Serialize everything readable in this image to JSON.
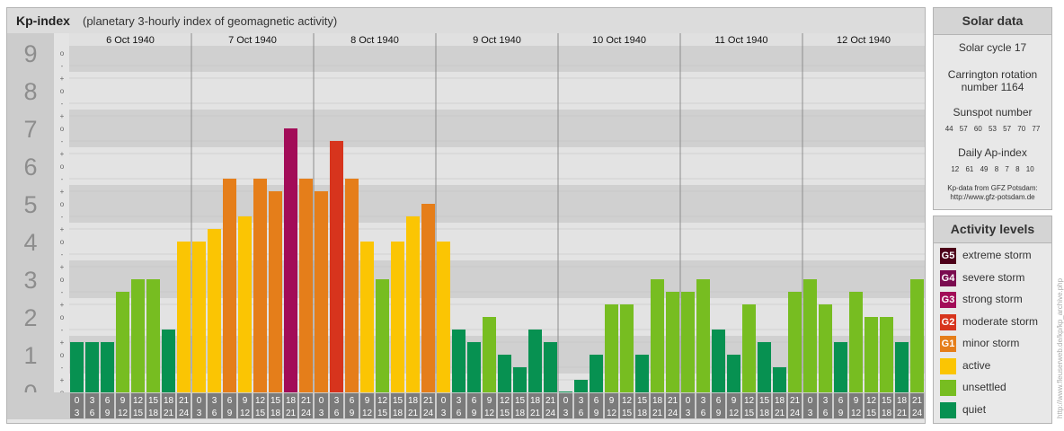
{
  "title": {
    "main": "Kp-index",
    "sub": "(planetary 3-hourly index of geomagnetic activity)"
  },
  "chart_data": {
    "type": "bar",
    "title": "Kp-index",
    "subtitle": "(planetary 3-hourly index of geomagnetic activity)",
    "y_ticks": [
      "0",
      "1",
      "2",
      "3",
      "4",
      "5",
      "6",
      "7",
      "8",
      "9"
    ],
    "y_minor_labels": [
      "o",
      "+",
      "-"
    ],
    "ylim": [
      0,
      9.33
    ],
    "days": [
      "6 Oct 1940",
      "7 Oct 1940",
      "8 Oct 1940",
      "9 Oct 1940",
      "10 Oct 1940",
      "11 Oct 1940",
      "12 Oct 1940"
    ],
    "interval_top": [
      "0",
      "3",
      "6",
      "9",
      "12",
      "15",
      "18",
      "21"
    ],
    "interval_bottom": [
      "3",
      "6",
      "9",
      "12",
      "15",
      "18",
      "21",
      "24"
    ],
    "values": [
      [
        1.333,
        1.333,
        1.333,
        2.667,
        3.0,
        3.0,
        1.667,
        4.0
      ],
      [
        4.0,
        4.333,
        5.667,
        4.667,
        5.667,
        5.333,
        7.0,
        5.667
      ],
      [
        5.333,
        6.667,
        5.667,
        4.0,
        3.0,
        4.0,
        4.667,
        5.0
      ],
      [
        4.0,
        1.667,
        1.333,
        2.0,
        1.0,
        0.667,
        1.667,
        1.333
      ],
      [
        0.0,
        0.333,
        1.0,
        2.333,
        2.333,
        1.0,
        3.0,
        2.667
      ],
      [
        2.667,
        3.0,
        1.667,
        1.0,
        2.333,
        1.333,
        0.667,
        2.667
      ],
      [
        3.0,
        2.333,
        1.333,
        2.667,
        2.0,
        2.0,
        1.333,
        3.0
      ]
    ],
    "colors": {
      "quiet": "#079151",
      "unsettled": "#77bd21",
      "active": "#fbc503",
      "G1": "#e57e1a",
      "G2": "#d7341d",
      "G3": "#a20c58",
      "G4": "#7a0b4f",
      "G5": "#4d0019"
    }
  },
  "solar": {
    "heading": "Solar data",
    "cycle": "Solar cycle 17",
    "carrington_1": "Carrington rotation",
    "carrington_2": "number 1164",
    "sunspot_label": "Sunspot number",
    "sunspot_values": "44 57 60 53 57 70 77",
    "ap_label": "Daily Ap-index",
    "ap_values": "12 61 49 8 7 8 10",
    "source_1": "Kp-data from GFZ Potsdam:",
    "source_2": "http://www.gfz-potsdam.de"
  },
  "activity": {
    "heading": "Activity levels",
    "items": [
      {
        "code": "G5",
        "label": "extreme storm",
        "color": "#4d0019"
      },
      {
        "code": "G4",
        "label": "severe storm",
        "color": "#7a0b4f"
      },
      {
        "code": "G3",
        "label": "strong storm",
        "color": "#a20c58"
      },
      {
        "code": "G2",
        "label": "moderate storm",
        "color": "#d7341d"
      },
      {
        "code": "G1",
        "label": "minor storm",
        "color": "#e57e1a"
      },
      {
        "code": "",
        "label": "active",
        "color": "#fbc503"
      },
      {
        "code": "",
        "label": "unsettled",
        "color": "#77bd21"
      },
      {
        "code": "",
        "label": "quiet",
        "color": "#079151"
      }
    ]
  },
  "watermark": "http://www.fleuserweb.de/kp/kp_archive.php"
}
